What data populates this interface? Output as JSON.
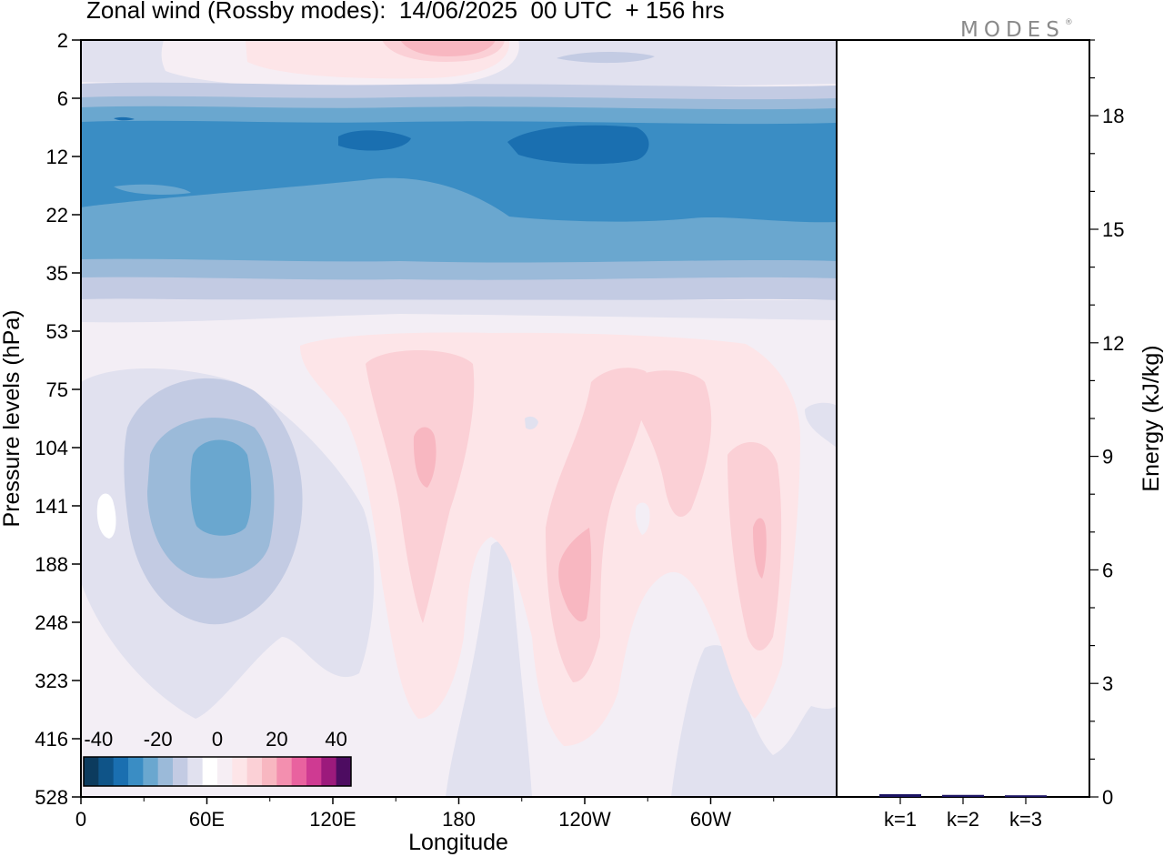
{
  "title": "Zonal wind (Rossby modes):  14/06/2025  00 UTC  + 156 hrs",
  "logo": {
    "text": "MODES",
    "mark": "®"
  },
  "chart_data": [
    {
      "type": "heatmap",
      "title": "Zonal wind (Rossby modes):  14/06/2025  00 UTC  + 156 hrs",
      "xlabel": "Longitude",
      "ylabel": "Pressure levels (hPa)",
      "x_tick_labels": [
        "0",
        "60E",
        "120E",
        "180",
        "120W",
        "60W"
      ],
      "x_tick_values_deg": [
        0,
        60,
        120,
        180,
        240,
        300
      ],
      "xlim_deg": [
        0,
        360
      ],
      "y_tick_labels": [
        "2",
        "6",
        "12",
        "22",
        "35",
        "53",
        "75",
        "104",
        "141",
        "188",
        "248",
        "323",
        "416",
        "528"
      ],
      "y_axis_inverted": true,
      "colorbar": {
        "tick_labels": [
          "-40",
          "-20",
          "0",
          "20",
          "40"
        ],
        "range": [
          -45,
          45
        ],
        "bins": 18,
        "colors": [
          "#0c3b5e",
          "#0f5488",
          "#1a6fb0",
          "#3a8dc4",
          "#6aa7cf",
          "#9bbad9",
          "#c3cbe3",
          "#e1e1ef",
          "#ffffff",
          "#f6eef4",
          "#fde5e8",
          "#fbd0d6",
          "#f8b7c1",
          "#f38faf",
          "#e9629f",
          "#cf3a92",
          "#9c1a7c",
          "#4d0c61"
        ]
      },
      "contour_features": [
        {
          "lon_range": [
            0,
            360
          ],
          "level_range": [
            "2",
            "6"
          ],
          "sign": "positive",
          "peak_m_s": 15
        },
        {
          "lon_range": [
            0,
            360
          ],
          "level_range": [
            "6",
            "35"
          ],
          "sign": "negative",
          "peak_m_s": -32
        },
        {
          "lon_range": [
            20,
            105
          ],
          "level_range": [
            "75",
            "248"
          ],
          "sign": "negative",
          "peak_m_s": -17
        },
        {
          "lon_range": [
            135,
            190
          ],
          "level_range": [
            "53",
            "323"
          ],
          "sign": "positive",
          "peak_m_s": 12
        },
        {
          "lon_range": [
            220,
            330
          ],
          "level_range": [
            "53",
            "416"
          ],
          "sign": "positive",
          "peak_m_s": 12
        }
      ]
    },
    {
      "type": "bar",
      "categories": [
        "k=1",
        "k=2",
        "k=3"
      ],
      "values": [
        0.05,
        0.03,
        0.02
      ],
      "ylabel": "Energy (kJ/kg)",
      "ylim": [
        0,
        20
      ],
      "y_ticks": [
        0,
        3,
        6,
        9,
        12,
        15,
        18
      ],
      "bar_color": "#1b1464"
    }
  ]
}
